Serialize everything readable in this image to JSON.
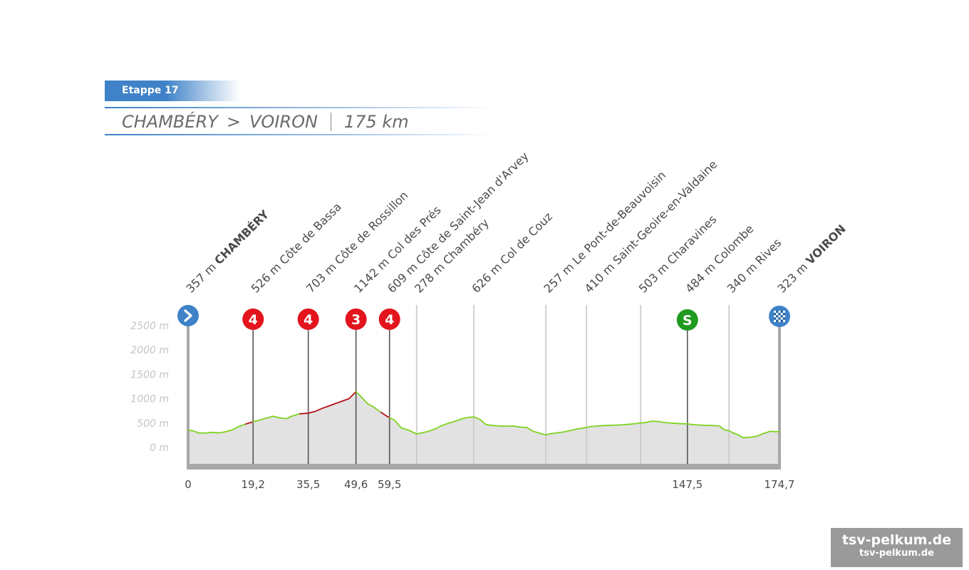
{
  "header": {
    "stage_label": "Etappe 17",
    "start": "CHAMBÉRY",
    "arrow": ">",
    "finish": "VOIRON",
    "distance": "175 km"
  },
  "watermark": {
    "main": "tsv-pelkum.de",
    "sub": "tsv-pelkum.de"
  },
  "colors": {
    "accent_blue": "#3f82c8",
    "climb_red": "#e3141c",
    "sprint_green": "#1f9a1f",
    "profile_green": "#7ed321",
    "profile_climb": "#b5121b",
    "profile_fill": "#e2e2e2",
    "axis_gray": "#a8a8a8"
  },
  "chart_data": {
    "type": "area",
    "title": "",
    "xlabel": "",
    "ylabel": "",
    "xlim": [
      0,
      174.7
    ],
    "ylim": [
      -250,
      2700
    ],
    "y_ticks": [
      0,
      500,
      1000,
      1500,
      2000,
      2500
    ],
    "y_tick_labels": [
      "0 m",
      "500 m",
      "1000 m",
      "1500 m",
      "2000 m",
      "2500 m"
    ],
    "x_tick_labels": [
      {
        "km": 0,
        "label": "0"
      },
      {
        "km": 19.2,
        "label": "19,2"
      },
      {
        "km": 35.5,
        "label": "35,5"
      },
      {
        "km": 49.6,
        "label": "49,6"
      },
      {
        "km": 59.5,
        "label": "59,5"
      },
      {
        "km": 147.5,
        "label": "147,5"
      },
      {
        "km": 174.7,
        "label": "174,7"
      }
    ],
    "waypoints": [
      {
        "km": 0,
        "altitude": "357 m",
        "name": "CHAMBÉRY",
        "bold": true,
        "marker": "start",
        "badge": "›"
      },
      {
        "km": 19.2,
        "altitude": "526 m",
        "name": "Côte de Bassa",
        "bold": false,
        "marker": "climb",
        "badge": "4"
      },
      {
        "km": 35.5,
        "altitude": "703 m",
        "name": "Côte de Rossillon",
        "bold": false,
        "marker": "climb",
        "badge": "4"
      },
      {
        "km": 49.6,
        "altitude": "1142 m",
        "name": "Col des Prés",
        "bold": false,
        "marker": "climb",
        "badge": "3"
      },
      {
        "km": 59.5,
        "altitude": "609 m",
        "name": "Côte de Saint-Jean d'Arvey",
        "bold": false,
        "marker": "climb",
        "badge": "4"
      },
      {
        "km": 67.5,
        "altitude": "278 m",
        "name": "Chambéry",
        "bold": false,
        "marker": "none",
        "badge": ""
      },
      {
        "km": 84.4,
        "altitude": "626 m",
        "name": "Col de Couz",
        "bold": false,
        "marker": "none",
        "badge": ""
      },
      {
        "km": 105.7,
        "altitude": "257 m",
        "name": "Le Pont-de-Beauvoisin",
        "bold": false,
        "marker": "none",
        "badge": ""
      },
      {
        "km": 117.7,
        "altitude": "410 m",
        "name": "Saint-Geoire-en-Valdaine",
        "bold": false,
        "marker": "none",
        "badge": ""
      },
      {
        "km": 133.7,
        "altitude": "503 m",
        "name": "Charavines",
        "bold": false,
        "marker": "none",
        "badge": ""
      },
      {
        "km": 147.5,
        "altitude": "484 m",
        "name": "Colombe",
        "bold": false,
        "marker": "sprint",
        "badge": "S"
      },
      {
        "km": 159.8,
        "altitude": "340 m",
        "name": "Rives",
        "bold": false,
        "marker": "none",
        "badge": ""
      },
      {
        "km": 174.7,
        "altitude": "323 m",
        "name": "VOIRON",
        "bold": true,
        "marker": "finish",
        "badge": ""
      }
    ],
    "profile": {
      "x": [
        0,
        1.5,
        3,
        5,
        7,
        9,
        11,
        13,
        15,
        17,
        19.2,
        21,
        23,
        25,
        27,
        29,
        31,
        33,
        35.5,
        37.5,
        39.5,
        41.5,
        43.5,
        45.5,
        47.5,
        49.6,
        51,
        53,
        55,
        57,
        58.5,
        59.5,
        61,
        63,
        65,
        67.5,
        69,
        71,
        73,
        75,
        77,
        79,
        81,
        83,
        84.4,
        85.5,
        86.5,
        88,
        90,
        92,
        94,
        96,
        98,
        100,
        102,
        104,
        105.7,
        107,
        109,
        111,
        113,
        115,
        117.7,
        119,
        121,
        123,
        125,
        127,
        129,
        131,
        133.7,
        135,
        137,
        139,
        141,
        143,
        145,
        147.5,
        149,
        151,
        153,
        155,
        157,
        158.5,
        159.8,
        161,
        162.5,
        164,
        166,
        168,
        170,
        172,
        174.7
      ],
      "y": [
        357,
        340,
        300,
        295,
        310,
        300,
        320,
        360,
        430,
        480,
        526,
        560,
        600,
        640,
        610,
        590,
        650,
        690,
        703,
        740,
        800,
        850,
        900,
        950,
        1000,
        1142,
        1050,
        900,
        820,
        720,
        650,
        609,
        560,
        400,
        360,
        278,
        300,
        330,
        380,
        450,
        500,
        540,
        590,
        620,
        626,
        600,
        560,
        470,
        450,
        440,
        435,
        440,
        420,
        410,
        330,
        290,
        257,
        280,
        300,
        320,
        350,
        380,
        410,
        430,
        440,
        450,
        455,
        460,
        470,
        480,
        503,
        510,
        540,
        530,
        510,
        500,
        490,
        484,
        470,
        460,
        455,
        450,
        440,
        360,
        340,
        300,
        260,
        200,
        210,
        230,
        290,
        330,
        323
      ],
      "climbs": [
        [
          17,
          19.2
        ],
        [
          33,
          49.6
        ],
        [
          57.5,
          59.5
        ]
      ]
    }
  }
}
